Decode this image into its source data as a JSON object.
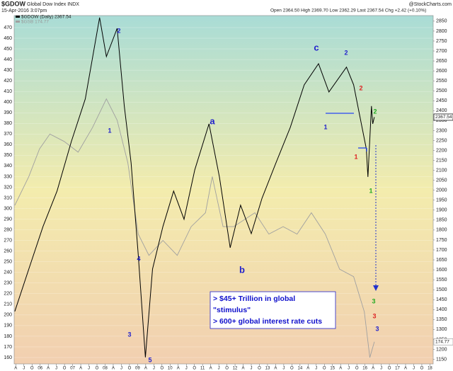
{
  "chart_data": {
    "type": "line",
    "title": "$GDOW",
    "subtitle": "Global Dow Index INDX",
    "date": "15-Apr-2016 3:07pm",
    "quote": "Open 2364.50  High 2369.70  Low 2362.29  Last 2367.54  Chg +2.42 (+0.10%)",
    "source": "@StockCharts.com",
    "xlim": [
      2005.2,
      2018.1
    ],
    "xticks": [
      {
        "value": 2005.25,
        "label": "A"
      },
      {
        "value": 2005.5,
        "label": "J"
      },
      {
        "value": 2005.75,
        "label": "O"
      },
      {
        "value": 2006,
        "label": "06"
      },
      {
        "value": 2006.25,
        "label": "A"
      },
      {
        "value": 2006.5,
        "label": "J"
      },
      {
        "value": 2006.75,
        "label": "O"
      },
      {
        "value": 2007,
        "label": "07"
      },
      {
        "value": 2007.25,
        "label": "A"
      },
      {
        "value": 2007.5,
        "label": "J"
      },
      {
        "value": 2007.75,
        "label": "O"
      },
      {
        "value": 2008,
        "label": "08"
      },
      {
        "value": 2008.25,
        "label": "A"
      },
      {
        "value": 2008.5,
        "label": "J"
      },
      {
        "value": 2008.75,
        "label": "O"
      },
      {
        "value": 2009,
        "label": "09"
      },
      {
        "value": 2009.25,
        "label": "A"
      },
      {
        "value": 2009.5,
        "label": "J"
      },
      {
        "value": 2009.75,
        "label": "O"
      },
      {
        "value": 2010,
        "label": "10"
      },
      {
        "value": 2010.25,
        "label": "A"
      },
      {
        "value": 2010.5,
        "label": "J"
      },
      {
        "value": 2010.75,
        "label": "O"
      },
      {
        "value": 2011,
        "label": "11"
      },
      {
        "value": 2011.25,
        "label": "A"
      },
      {
        "value": 2011.5,
        "label": "J"
      },
      {
        "value": 2011.75,
        "label": "O"
      },
      {
        "value": 2012,
        "label": "12"
      },
      {
        "value": 2012.25,
        "label": "A"
      },
      {
        "value": 2012.5,
        "label": "J"
      },
      {
        "value": 2012.75,
        "label": "O"
      },
      {
        "value": 2013,
        "label": "13"
      },
      {
        "value": 2013.25,
        "label": "A"
      },
      {
        "value": 2013.5,
        "label": "J"
      },
      {
        "value": 2013.75,
        "label": "O"
      },
      {
        "value": 2014,
        "label": "14"
      },
      {
        "value": 2014.25,
        "label": "A"
      },
      {
        "value": 2014.5,
        "label": "J"
      },
      {
        "value": 2014.75,
        "label": "O"
      },
      {
        "value": 2015,
        "label": "15"
      },
      {
        "value": 2015.25,
        "label": "A"
      },
      {
        "value": 2015.5,
        "label": "J"
      },
      {
        "value": 2015.75,
        "label": "O"
      },
      {
        "value": 2016,
        "label": "16"
      },
      {
        "value": 2016.25,
        "label": "A"
      },
      {
        "value": 2016.5,
        "label": "J"
      },
      {
        "value": 2016.75,
        "label": "O"
      },
      {
        "value": 2017,
        "label": "17"
      },
      {
        "value": 2017.25,
        "label": "A"
      },
      {
        "value": 2017.5,
        "label": "J"
      },
      {
        "value": 2017.75,
        "label": "O"
      },
      {
        "value": 2018,
        "label": "18"
      }
    ],
    "ylim": [
      154,
      481.3
    ],
    "yticks": [
      160,
      170,
      180,
      190,
      200,
      210,
      220,
      230,
      240,
      250,
      260,
      270,
      280,
      290,
      300,
      310,
      320,
      330,
      340,
      350,
      360,
      370,
      380,
      390,
      400,
      410,
      420,
      430,
      440,
      450,
      460,
      470
    ],
    "y2lim": [
      1127,
      2878
    ],
    "y2ticks": [
      1150,
      1200,
      1250,
      1300,
      1350,
      1400,
      1450,
      1500,
      1550,
      1600,
      1650,
      1700,
      1750,
      1800,
      1850,
      1900,
      1950,
      2000,
      2050,
      2100,
      2150,
      2200,
      2250,
      2300,
      2350,
      2400,
      2450,
      2500,
      2550,
      2600,
      2650,
      2700,
      2750,
      2800,
      2850
    ],
    "grid": true,
    "series": [
      {
        "name": "$GDOW (Daily) 2367.54",
        "color": "#000000",
        "axis": "y2",
        "x": [
          2005.22,
          2005.65,
          2006.09,
          2006.52,
          2006.96,
          2007.39,
          2007.83,
          2008.04,
          2008.37,
          2008.59,
          2008.8,
          2009.02,
          2009.24,
          2009.46,
          2009.78,
          2010.11,
          2010.43,
          2010.76,
          2011.2,
          2011.52,
          2011.85,
          2012.17,
          2012.5,
          2012.83,
          2013.26,
          2013.7,
          2014.13,
          2014.57,
          2014.89,
          2015.43,
          2015.65,
          2015.91,
          2016.04,
          2016.09,
          2016.2,
          2016.24,
          2016.29
        ],
        "values": [
          1391,
          1604,
          1818,
          1996,
          2245,
          2459,
          2868,
          2672,
          2814,
          2423,
          2138,
          1676,
          1160,
          1604,
          1818,
          1996,
          1854,
          2103,
          2334,
          2067,
          1711,
          1925,
          1782,
          1960,
          2138,
          2316,
          2530,
          2636,
          2494,
          2619,
          2530,
          2316,
          2209,
          2067,
          2423,
          2334,
          2367.54
        ]
      },
      {
        "name": "$GSB 174.77",
        "color": "#a0a0a0",
        "x": [
          2005.22,
          2005.65,
          2005.98,
          2006.3,
          2006.74,
          2007.17,
          2007.61,
          2008.04,
          2008.37,
          2008.7,
          2009.02,
          2009.35,
          2009.78,
          2010.22,
          2010.65,
          2011.09,
          2011.3,
          2011.63,
          2011.96,
          2012.61,
          2013.04,
          2013.48,
          2013.91,
          2014.35,
          2014.78,
          2015.22,
          2015.65,
          2015.98,
          2016.15,
          2016.29
        ],
        "values": [
          303,
          330,
          356,
          370,
          363,
          353,
          376,
          403,
          383,
          343,
          276,
          256,
          270,
          256,
          283,
          296,
          330,
          283,
          283,
          296,
          276,
          283,
          276,
          296,
          276,
          243,
          236,
          203,
          160,
          174.77
        ]
      }
    ],
    "annotations": [
      {
        "text": "1",
        "color": "#2222cc"
      },
      {
        "text": "2",
        "color": "#2222cc"
      },
      {
        "text": "3",
        "color": "#2222cc"
      },
      {
        "text": "4",
        "color": "#2222cc"
      },
      {
        "text": "5",
        "color": "#2222cc"
      },
      {
        "text": "a",
        "color": "#2222cc"
      },
      {
        "text": "b",
        "color": "#2222cc"
      },
      {
        "text": "c",
        "color": "#2222cc"
      },
      {
        "text": "1",
        "color": "#2222cc"
      },
      {
        "text": "2",
        "color": "#2222cc"
      },
      {
        "text": "1",
        "color": "#dd2222"
      },
      {
        "text": "2",
        "color": "#dd2222"
      },
      {
        "text": "1",
        "color": "#22aa22"
      },
      {
        "text": "2",
        "color": "#22aa22"
      },
      {
        "text": "3",
        "color": "#22aa22"
      },
      {
        "text": "3",
        "color": "#dd2222"
      },
      {
        "text": "3",
        "color": "#2222cc"
      }
    ],
    "notes": [
      "> $45+ Trillion in global",
      "\"stimulus\"",
      "> 600+ global interest rate cuts"
    ]
  }
}
